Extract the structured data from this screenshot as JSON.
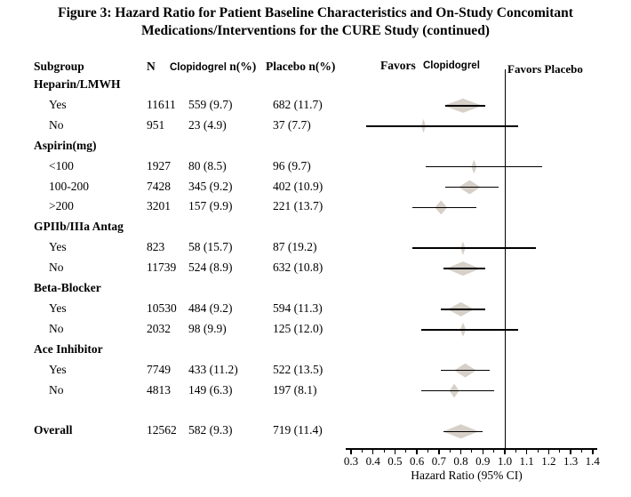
{
  "title": {
    "line1": "Figure 3: Hazard Ratio for Patient Baseline Characteristics and On-Study Concomitant",
    "line2": "Medications/Interventions for the CURE Study (continued)"
  },
  "table": {
    "headers": {
      "subgroup": "Subgroup",
      "n": "N",
      "clopidogrel_word": "Clopidogrel",
      "n_pct": "n(%)",
      "placebo": "Placebo n(%)"
    }
  },
  "plot": {
    "favors_left_word1": "Favors",
    "favors_left_word2": "Clopidogrel",
    "favors_right": "Favors Placebo",
    "axis": {
      "min": 0.3,
      "max": 1.4,
      "reference_line": 1.0,
      "minor_step": 0.05,
      "tick_labels": [
        "0.3",
        "0.4",
        "0.5",
        "0.6",
        "0.7",
        "0.8",
        "0.9",
        "1.0",
        "1.1",
        "1.2",
        "1.3",
        "1.4"
      ],
      "xlabel": "Hazard Ratio (95% CI)"
    }
  },
  "colors": {
    "background": "#ffffff",
    "text": "#000000",
    "line": "#000000",
    "diamond": "#d6d0c8"
  },
  "chart_data": {
    "type": "scatter",
    "variant": "forest-plot",
    "title": "Figure 3: Hazard Ratio for Patient Baseline Characteristics and On-Study Concomitant Medications/Interventions for the CURE Study (continued)",
    "xlabel": "Hazard Ratio (95% CI)",
    "xlim": [
      0.3,
      1.4
    ],
    "reference_line": 1.0,
    "grid": false,
    "legend": false,
    "favors": {
      "left": "Favors Clopidogrel",
      "right": "Favors Placebo"
    },
    "rows": [
      {
        "kind": "group",
        "label": "Heparin/LMWH"
      },
      {
        "kind": "item",
        "label": "Yes",
        "n": "11611",
        "clopidogrel": "559 (9.7)",
        "placebo": "682 (11.7)",
        "hr": 0.81,
        "ci_low": 0.73,
        "ci_high": 0.91,
        "diamond_halfwidth": 0.088
      },
      {
        "kind": "item",
        "label": "No",
        "n": "951",
        "clopidogrel": "23 (4.9)",
        "placebo": "37 (7.7)",
        "hr": 0.63,
        "ci_low": 0.37,
        "ci_high": 1.06,
        "diamond_halfwidth": 0.01
      },
      {
        "kind": "group",
        "label": "Aspirin(mg)"
      },
      {
        "kind": "item",
        "label": "<100",
        "n": "1927",
        "clopidogrel": "80 (8.5)",
        "placebo": "96 (9.7)",
        "hr": 0.86,
        "ci_low": 0.64,
        "ci_high": 1.17,
        "diamond_halfwidth": 0.012
      },
      {
        "kind": "item",
        "label": "100-200",
        "n": "7428",
        "clopidogrel": "345 (9.2)",
        "placebo": "402 (10.9)",
        "hr": 0.84,
        "ci_low": 0.73,
        "ci_high": 0.97,
        "diamond_halfwidth": 0.05
      },
      {
        "kind": "item",
        "label": ">200",
        "n": "3201",
        "clopidogrel": "157 (9.9)",
        "placebo": "221 (13.7)",
        "hr": 0.71,
        "ci_low": 0.58,
        "ci_high": 0.87,
        "diamond_halfwidth": 0.028
      },
      {
        "kind": "group",
        "label": "GPIIb/IIIa Antag"
      },
      {
        "kind": "item",
        "label": "Yes",
        "n": "823",
        "clopidogrel": "58 (15.7)",
        "placebo": "87 (19.2)",
        "hr": 0.81,
        "ci_low": 0.58,
        "ci_high": 1.14,
        "diamond_halfwidth": 0.01
      },
      {
        "kind": "item",
        "label": "No",
        "n": "11739",
        "clopidogrel": "524 (8.9)",
        "placebo": "632 (10.8)",
        "hr": 0.81,
        "ci_low": 0.72,
        "ci_high": 0.91,
        "diamond_halfwidth": 0.078
      },
      {
        "kind": "group",
        "label": "Beta-Blocker"
      },
      {
        "kind": "item",
        "label": "Yes",
        "n": "10530",
        "clopidogrel": "484 (9.2)",
        "placebo": "594 (11.3)",
        "hr": 0.8,
        "ci_low": 0.71,
        "ci_high": 0.91,
        "diamond_halfwidth": 0.06
      },
      {
        "kind": "item",
        "label": "No",
        "n": "2032",
        "clopidogrel": "98 (9.9)",
        "placebo": "125 (12.0)",
        "hr": 0.81,
        "ci_low": 0.62,
        "ci_high": 1.06,
        "diamond_halfwidth": 0.013
      },
      {
        "kind": "group",
        "label": "Ace Inhibitor"
      },
      {
        "kind": "item",
        "label": "Yes",
        "n": "7749",
        "clopidogrel": "433 (11.2)",
        "placebo": "522 (13.5)",
        "hr": 0.82,
        "ci_low": 0.71,
        "ci_high": 0.93,
        "diamond_halfwidth": 0.05
      },
      {
        "kind": "item",
        "label": "No",
        "n": "4813",
        "clopidogrel": "149 (6.3)",
        "placebo": "197 (8.1)",
        "hr": 0.77,
        "ci_low": 0.62,
        "ci_high": 0.95,
        "diamond_halfwidth": 0.022
      },
      {
        "kind": "spacer"
      },
      {
        "kind": "overall",
        "label": "Overall",
        "n": "12562",
        "clopidogrel": "582 (9.3)",
        "placebo": "719 (11.4)",
        "hr": 0.8,
        "ci_low": 0.72,
        "ci_high": 0.9,
        "diamond_halfwidth": 0.082
      }
    ]
  }
}
